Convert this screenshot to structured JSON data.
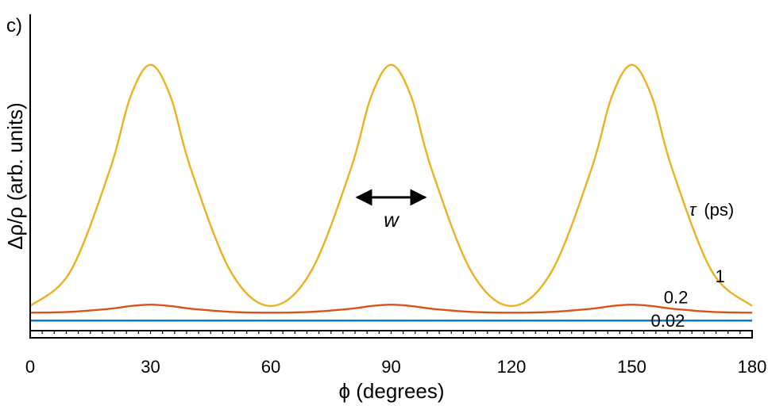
{
  "chart_data": {
    "type": "line",
    "panel_label": "c)",
    "xlabel": "ϕ (degrees)",
    "ylabel": "Δρ/ρ (arb. units)",
    "xlim": [
      0,
      180
    ],
    "ylim": [
      0,
      1.08
    ],
    "x_ticks": [
      0,
      30,
      60,
      90,
      120,
      150,
      180
    ],
    "x_tick_labels": [
      "0",
      "30",
      "60",
      "90",
      "120",
      "150",
      "180"
    ],
    "legend_title_symbol": "τ",
    "legend_title_unit": "(ps)",
    "series": [
      {
        "name": "1",
        "color": "#EDB120",
        "x": [
          0,
          10,
          20,
          25,
          30,
          35,
          40,
          50,
          60,
          70,
          80,
          85,
          90,
          95,
          100,
          110,
          120,
          130,
          140,
          145,
          150,
          155,
          160,
          170,
          180
        ],
        "y": [
          0.09,
          0.22,
          0.61,
          0.88,
          1.0,
          0.88,
          0.61,
          0.22,
          0.09,
          0.22,
          0.61,
          0.88,
          1.0,
          0.88,
          0.61,
          0.22,
          0.09,
          0.22,
          0.61,
          0.88,
          1.0,
          0.88,
          0.61,
          0.22,
          0.09
        ]
      },
      {
        "name": "0.2",
        "color": "#D95319",
        "x": [
          0,
          10,
          20,
          25,
          30,
          35,
          40,
          50,
          60,
          70,
          80,
          85,
          90,
          95,
          100,
          110,
          120,
          130,
          140,
          145,
          150,
          155,
          160,
          170,
          180
        ],
        "y": [
          0.065,
          0.068,
          0.08,
          0.09,
          0.095,
          0.09,
          0.08,
          0.068,
          0.065,
          0.068,
          0.08,
          0.09,
          0.095,
          0.09,
          0.08,
          0.068,
          0.065,
          0.068,
          0.08,
          0.09,
          0.095,
          0.09,
          0.08,
          0.068,
          0.065
        ]
      },
      {
        "name": "0.02",
        "color": "#0072BD",
        "x": [
          0,
          180
        ],
        "y": [
          0.035,
          0.035
        ]
      }
    ],
    "annotation": {
      "text": "w",
      "arrow_from_x": 81.5,
      "arrow_to_x": 98.5,
      "arrow_y": 0.5
    },
    "grid": false
  }
}
